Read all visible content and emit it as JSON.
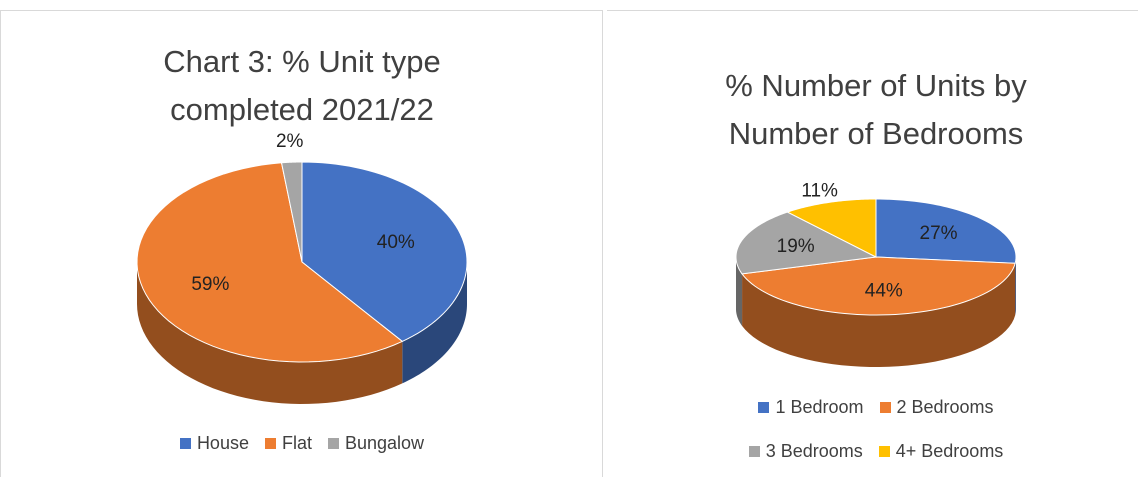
{
  "chart_data": [
    {
      "type": "pie",
      "title": "Chart 3: % Unit type completed 2021/22",
      "categories": [
        "House",
        "Flat",
        "Bungalow"
      ],
      "values": [
        40,
        59,
        2
      ],
      "value_labels": [
        "40%",
        "59%",
        "2%"
      ],
      "colors": [
        "#4472c4",
        "#ed7d31",
        "#a5a5a5"
      ],
      "legend": "bottom"
    },
    {
      "type": "pie",
      "title": "% Number of Units by Number of Bedrooms",
      "categories": [
        "1 Bedroom",
        "2 Bedrooms",
        "3 Bedrooms",
        "4+ Bedrooms"
      ],
      "values": [
        27,
        44,
        19,
        11
      ],
      "value_labels": [
        "27%",
        "44%",
        "19%",
        "11%"
      ],
      "colors": [
        "#4472c4",
        "#ed7d31",
        "#a5a5a5",
        "#ffc000"
      ],
      "legend": "bottom"
    }
  ]
}
